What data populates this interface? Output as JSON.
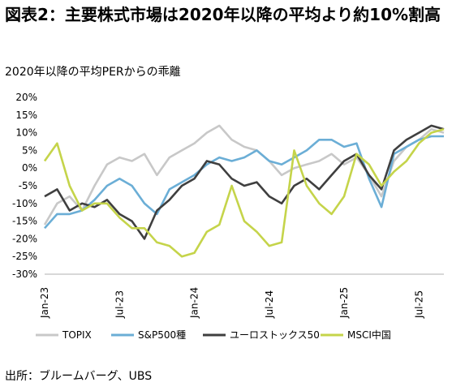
{
  "title": "図表2：主要株式市場は2020年以降の平均より約10%割高",
  "subtitle": "2020年以降の平均PERからの乖離",
  "source": "出所：ブルームバーグ、UBS",
  "chart_data": {
    "type": "line",
    "title": "図表2：主要株式市場は2020年以降の平均より約10%割高",
    "ylabel": "",
    "xlabel": "",
    "ylim": [
      -30,
      20
    ],
    "yticks": [
      -30,
      -25,
      -20,
      -15,
      -10,
      -5,
      0,
      5,
      10,
      15,
      20
    ],
    "ytick_labels": [
      "-30%",
      "-25%",
      "-20%",
      "-15%",
      "-10%",
      "-5%",
      "0%",
      "5%",
      "10%",
      "15%",
      "20%"
    ],
    "xlim": [
      "2023-01",
      "2025-09"
    ],
    "xticks": [
      "Jan-23",
      "Jul-23",
      "Jan-24",
      "Jul-24",
      "Jan-25",
      "Jul-25"
    ],
    "grid": false,
    "legend_position": "bottom",
    "series": [
      {
        "name": "TOPIX",
        "color": "#c8c8c8",
        "x": [
          "2023-01",
          "2023-02",
          "2023-03",
          "2023-04",
          "2023-05",
          "2023-06",
          "2023-07",
          "2023-08",
          "2023-09",
          "2023-10",
          "2023-11",
          "2023-12",
          "2024-01",
          "2024-02",
          "2024-03",
          "2024-04",
          "2024-05",
          "2024-06",
          "2024-07",
          "2024-08",
          "2024-09",
          "2024-10",
          "2024-11",
          "2024-12",
          "2025-01",
          "2025-02",
          "2025-03",
          "2025-04",
          "2025-05",
          "2025-06",
          "2025-07",
          "2025-08",
          "2025-09"
        ],
        "values": [
          -16,
          -10,
          -8,
          -12,
          -5,
          1,
          3,
          2,
          4,
          -2,
          3,
          5,
          7,
          10,
          12,
          8,
          6,
          5,
          2,
          -2,
          0,
          1,
          2,
          4,
          1,
          3,
          -2,
          -8,
          2,
          6,
          8,
          11,
          10
        ]
      },
      {
        "name": "S&P500種",
        "color": "#6baed6",
        "x": [
          "2023-01",
          "2023-02",
          "2023-03",
          "2023-04",
          "2023-05",
          "2023-06",
          "2023-07",
          "2023-08",
          "2023-09",
          "2023-10",
          "2023-11",
          "2023-12",
          "2024-01",
          "2024-02",
          "2024-03",
          "2024-04",
          "2024-05",
          "2024-06",
          "2024-07",
          "2024-08",
          "2024-09",
          "2024-10",
          "2024-11",
          "2024-12",
          "2025-01",
          "2025-02",
          "2025-03",
          "2025-04",
          "2025-05",
          "2025-06",
          "2025-07",
          "2025-08",
          "2025-09"
        ],
        "values": [
          -17,
          -13,
          -13,
          -12,
          -9,
          -5,
          -3,
          -5,
          -10,
          -13,
          -6,
          -4,
          -2,
          1,
          3,
          2,
          3,
          5,
          2,
          1,
          3,
          5,
          8,
          8,
          6,
          7,
          -3,
          -11,
          4,
          6,
          8,
          9,
          9
        ]
      },
      {
        "name": "ユーロストックス50",
        "color": "#3f3f3f",
        "x": [
          "2023-01",
          "2023-02",
          "2023-03",
          "2023-04",
          "2023-05",
          "2023-06",
          "2023-07",
          "2023-08",
          "2023-09",
          "2023-10",
          "2023-11",
          "2023-12",
          "2024-01",
          "2024-02",
          "2024-03",
          "2024-04",
          "2024-05",
          "2024-06",
          "2024-07",
          "2024-08",
          "2024-09",
          "2024-10",
          "2024-11",
          "2024-12",
          "2025-01",
          "2025-02",
          "2025-03",
          "2025-04",
          "2025-05",
          "2025-06",
          "2025-07",
          "2025-08",
          "2025-09"
        ],
        "values": [
          -8,
          -6,
          -12,
          -10,
          -11,
          -9,
          -13,
          -15,
          -20,
          -12,
          -9,
          -5,
          -3,
          2,
          1,
          -3,
          -5,
          -4,
          -8,
          -10,
          -5,
          -3,
          -6,
          -2,
          2,
          4,
          -2,
          -6,
          5,
          8,
          10,
          12,
          11
        ]
      },
      {
        "name": "MSCI中国",
        "color": "#c5d44a",
        "x": [
          "2023-01",
          "2023-02",
          "2023-03",
          "2023-04",
          "2023-05",
          "2023-06",
          "2023-07",
          "2023-08",
          "2023-09",
          "2023-10",
          "2023-11",
          "2023-12",
          "2024-01",
          "2024-02",
          "2024-03",
          "2024-04",
          "2024-05",
          "2024-06",
          "2024-07",
          "2024-08",
          "2024-09",
          "2024-10",
          "2024-11",
          "2024-12",
          "2025-01",
          "2025-02",
          "2025-03",
          "2025-04",
          "2025-05",
          "2025-06",
          "2025-07",
          "2025-08",
          "2025-09"
        ],
        "values": [
          2,
          7,
          -5,
          -12,
          -10,
          -10,
          -14,
          -17,
          -17,
          -21,
          -22,
          -25,
          -24,
          -18,
          -16,
          -5,
          -15,
          -18,
          -22,
          -21,
          5,
          -5,
          -10,
          -13,
          -8,
          4,
          1,
          -5,
          -1,
          2,
          7,
          10,
          11
        ]
      }
    ]
  }
}
